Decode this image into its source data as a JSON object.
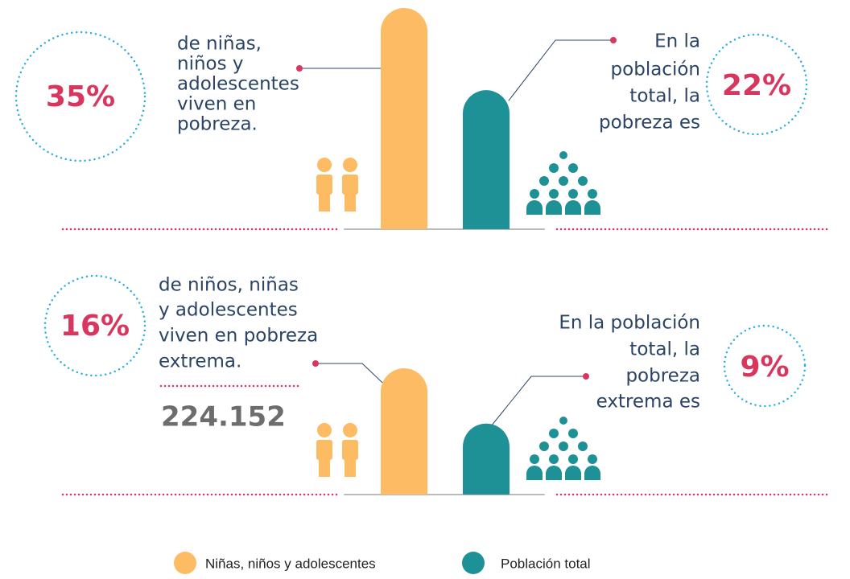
{
  "panels": [
    {
      "child": {
        "value": 35,
        "value_label": "35%",
        "text": [
          "de niñas,",
          "niños y",
          "adolescentes",
          "viven en",
          "pobreza."
        ]
      },
      "total": {
        "value": 22,
        "value_label": "22%",
        "text": [
          "En la",
          "población",
          "total, la",
          "pobreza es"
        ]
      }
    },
    {
      "child": {
        "value": 16,
        "value_label": "16%",
        "text": [
          "de niños, niñas",
          "y adolescentes",
          "viven en pobreza",
          "extrema."
        ],
        "count": "224.152"
      },
      "total": {
        "value": 9,
        "value_label": "9%",
        "text": [
          "En la población",
          "total, la",
          "pobreza",
          "extrema es"
        ]
      }
    }
  ],
  "legend": [
    {
      "name": "Niñas, niños y adolescentes",
      "color": "#fdbb63"
    },
    {
      "name": "Población total",
      "color": "#1e9197"
    }
  ]
}
